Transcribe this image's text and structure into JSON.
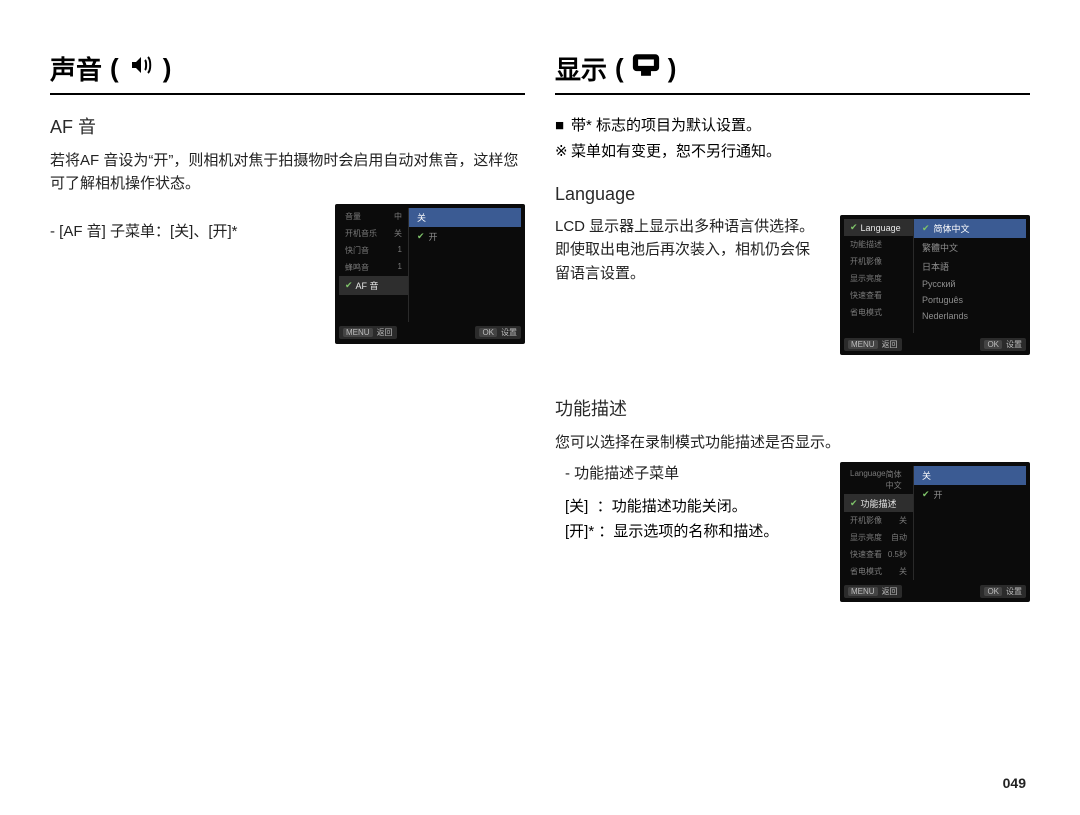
{
  "left": {
    "title": "声音",
    "icon": "sound-icon",
    "af": {
      "heading": "AF 音",
      "desc": "若将AF 音设为“开”，则相机对焦于拍摄物时会启用自动对焦音，这样您可了解相机操作状态。",
      "submenu_label": "- [AF 音] 子菜单：[关]、[开]*"
    },
    "screen1": {
      "left_items": [
        "音量",
        "开机音乐",
        "快门音",
        "蜂鸣音",
        "AF 音"
      ],
      "left_values": [
        "中",
        "关",
        "1",
        "1",
        ""
      ],
      "selected_index": 4,
      "right_items": [
        "关",
        "开"
      ],
      "right_checked_index": 1,
      "right_highlight_index": 0,
      "footer_left": "返回",
      "footer_left_btn": "MENU",
      "footer_right": "设置",
      "footer_right_btn": "OK",
      "bg": "#0b0b0b",
      "hl_color": "#3b5b93"
    }
  },
  "right": {
    "title": "显示",
    "icon": "display-icon",
    "notes": {
      "line1_mark": "■",
      "line1": "带* 标志的项目为默认设置。",
      "line2_mark": "※",
      "line2": "菜单如有变更，恕不另行通知。"
    },
    "language": {
      "heading": "Language",
      "desc": "LCD 显示器上显示出多种语言供选择。即使取出电池后再次装入，相机仍会保留语言设置。"
    },
    "screen2": {
      "left_items": [
        "Language",
        "功能描述",
        "开机影像",
        "显示亮度",
        "快速查看",
        "省电模式"
      ],
      "left_values": [
        "",
        "",
        "",
        "",
        "",
        ""
      ],
      "selected_index": 0,
      "right_items": [
        "简体中文",
        "繁體中文",
        "日本語",
        "Русский",
        "Português",
        "Nederlands"
      ],
      "right_checked_index": 0,
      "right_highlight_index": 0,
      "footer_left": "返回",
      "footer_left_btn": "MENU",
      "footer_right": "设置",
      "footer_right_btn": "OK",
      "bg": "#0b0b0b",
      "hl_color": "#3b5b93"
    },
    "funcdesc": {
      "heading": "功能描述",
      "desc": "您可以选择在录制模式功能描述是否显示。",
      "sub_label": "- 功能描述子菜单",
      "row1_key": "[关]",
      "row1_val": "：功能描述功能关闭。",
      "row2_key": "[开]*",
      "row2_val": "：显示选项的名称和描述。"
    },
    "screen3": {
      "left_items": [
        "Language",
        "功能描述",
        "开机影像",
        "显示亮度",
        "快速查看",
        "省电模式"
      ],
      "left_values": [
        "简体中文",
        "",
        "关",
        "自动",
        "0.5秒",
        "关"
      ],
      "selected_index": 1,
      "right_items": [
        "关",
        "开"
      ],
      "right_checked_index": 1,
      "right_highlight_index": 0,
      "footer_left": "返回",
      "footer_left_btn": "MENU",
      "footer_right": "设置",
      "footer_right_btn": "OK",
      "bg": "#0b0b0b",
      "hl_color": "#3b5b93"
    }
  },
  "page_number": "049"
}
